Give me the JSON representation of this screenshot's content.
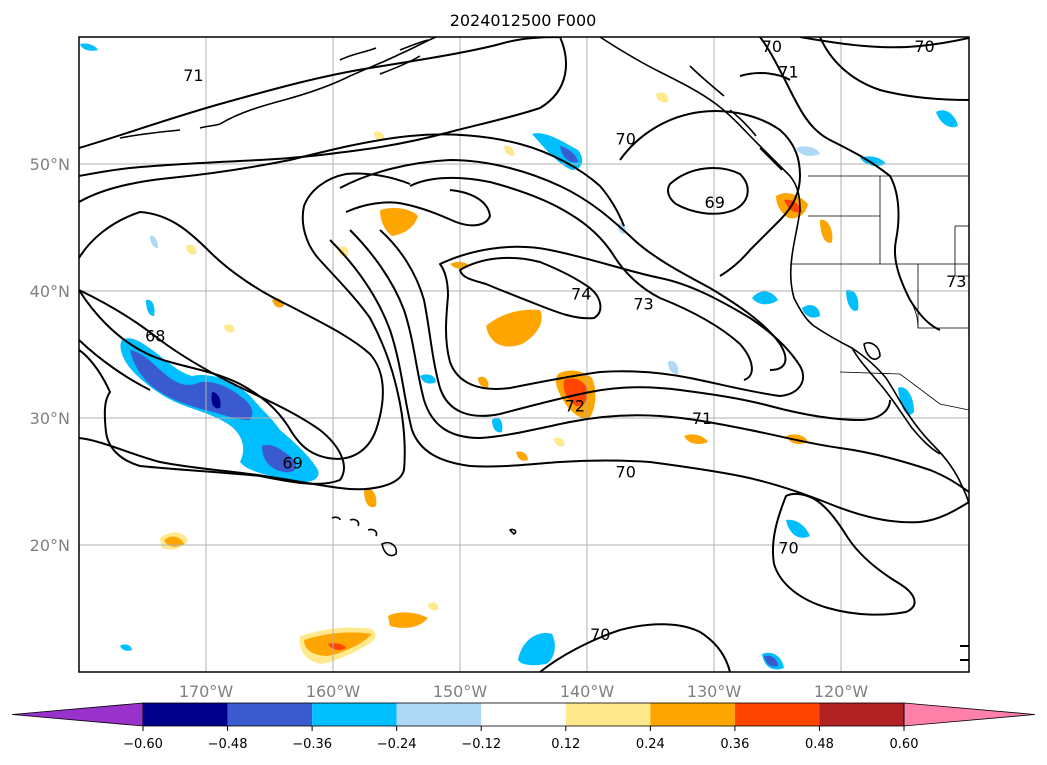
{
  "title": "2024012500 F000",
  "map": {
    "longitude_labels": [
      "170°W",
      "160°W",
      "150°W",
      "140°W",
      "130°W",
      "120°W"
    ],
    "latitude_labels": [
      "50°N",
      "40°N",
      "30°N",
      "20°N"
    ],
    "grid": true,
    "extent": {
      "lon": [
        -180,
        -110
      ],
      "lat": [
        10,
        60
      ]
    }
  },
  "contour_labels": [
    {
      "text": "71",
      "lat": 57.0,
      "lon": -171.0
    },
    {
      "text": "70",
      "lat": 59.3,
      "lon": -125.5
    },
    {
      "text": "70",
      "lat": 59.3,
      "lon": -113.5
    },
    {
      "text": "71",
      "lat": 57.3,
      "lon": -124.2
    },
    {
      "text": "70",
      "lat": 52.0,
      "lon": -137.0
    },
    {
      "text": "69",
      "lat": 47.0,
      "lon": -130.0
    },
    {
      "text": "74",
      "lat": 39.8,
      "lon": -140.5
    },
    {
      "text": "73",
      "lat": 39.0,
      "lon": -135.6
    },
    {
      "text": "68",
      "lat": 36.5,
      "lon": -174.0
    },
    {
      "text": "72",
      "lat": 31.0,
      "lon": -141.0
    },
    {
      "text": "71",
      "lat": 30.0,
      "lon": -131.0
    },
    {
      "text": "70",
      "lat": 25.8,
      "lon": -137.0
    },
    {
      "text": "69",
      "lat": 26.5,
      "lon": -163.2
    },
    {
      "text": "70",
      "lat": 19.8,
      "lon": -124.2
    },
    {
      "text": "70",
      "lat": 13.0,
      "lon": -139.0
    },
    {
      "text": "73",
      "lat": 40.8,
      "lon": -111.0
    }
  ],
  "colorbar": {
    "labels": [
      "-0.60",
      "-0.48",
      "-0.36",
      "-0.24",
      "-0.12",
      "0.12",
      "0.24",
      "0.36",
      "0.48",
      "0.60"
    ],
    "colors": [
      "#9932cc",
      "#00008b",
      "#3a5bcf",
      "#00bfff",
      "#add8f6",
      "#ffffff",
      "#ffe98c",
      "#ffa500",
      "#ff4500",
      "#b22222",
      "#ff80a8"
    ]
  }
}
